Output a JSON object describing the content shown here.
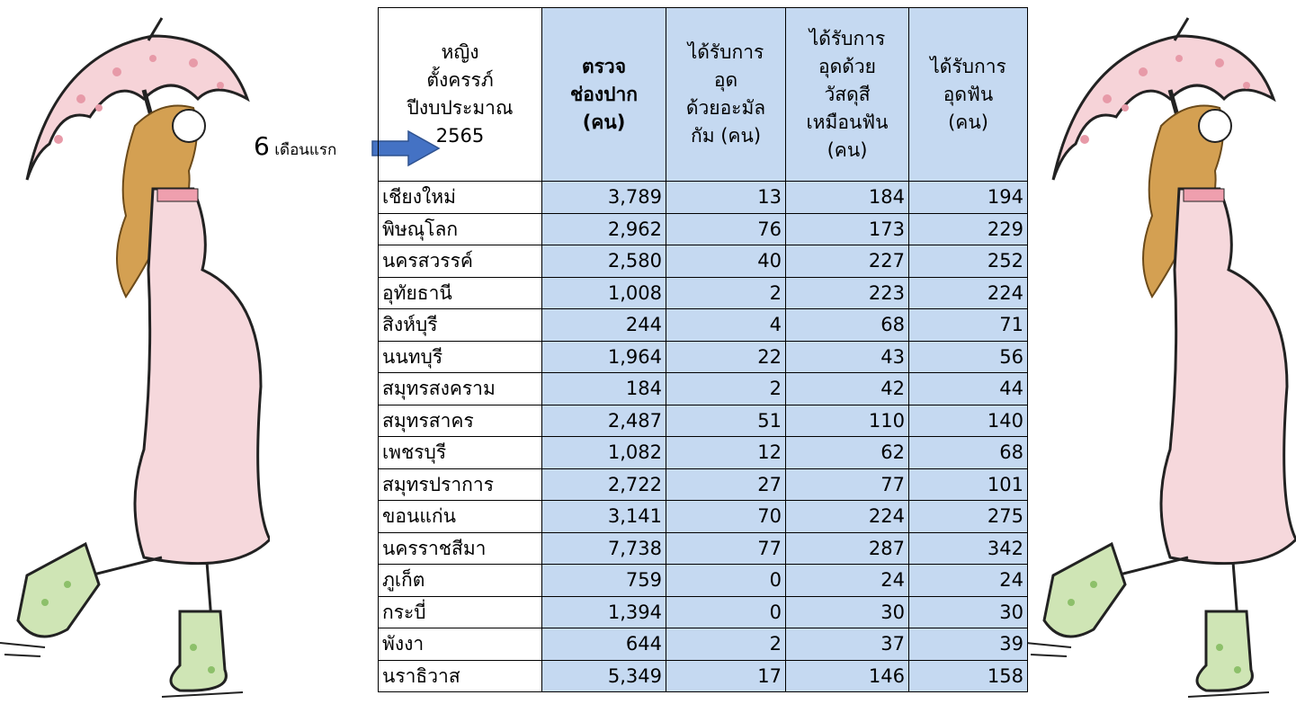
{
  "note": {
    "number": "6",
    "text": "เดือนแรก"
  },
  "table": {
    "headers": [
      [
        "หญิง",
        "ตั้งครรภ์",
        "ปีงบประมาณ",
        "2565"
      ],
      [
        "ตรวจ",
        "ช่องปาก",
        "(คน)"
      ],
      [
        "ได้รับการ",
        "อุด",
        "ด้วยอะมัล",
        "กัม (คน)"
      ],
      [
        "ได้รับการ",
        "อุดด้วย",
        "วัสดุสี",
        "เหมือนฟัน",
        "(คน)"
      ],
      [
        "ได้รับการ",
        "อุดฟัน",
        "(คน)"
      ]
    ],
    "rows": [
      [
        "เชียงใหม่",
        "3,789",
        "13",
        "184",
        "194"
      ],
      [
        "พิษณุโลก",
        "2,962",
        "76",
        "173",
        "229"
      ],
      [
        "นครสวรรค์",
        "2,580",
        "40",
        "227",
        "252"
      ],
      [
        "อุทัยธานี",
        "1,008",
        "2",
        "223",
        "224"
      ],
      [
        "สิงห์บุรี",
        "244",
        "4",
        "68",
        "71"
      ],
      [
        "นนทบุรี",
        "1,964",
        "22",
        "43",
        "56"
      ],
      [
        "สมุทรสงคราม",
        "184",
        "2",
        "42",
        "44"
      ],
      [
        "สมุทรสาคร",
        "2,487",
        "51",
        "110",
        "140"
      ],
      [
        "เพชรบุรี",
        "1,082",
        "12",
        "62",
        "68"
      ],
      [
        "สมุทรปราการ",
        "2,722",
        "27",
        "77",
        "101"
      ],
      [
        "ขอนแก่น",
        "3,141",
        "70",
        "224",
        "275"
      ],
      [
        "นครราชสีมา",
        "7,738",
        "77",
        "287",
        "342"
      ],
      [
        "ภูเก็ต",
        "759",
        "0",
        "24",
        "24"
      ],
      [
        "กระบี่",
        "1,394",
        "0",
        "30",
        "30"
      ],
      [
        "พังงา",
        "644",
        "2",
        "37",
        "39"
      ],
      [
        "นราธิวาส",
        "5,349",
        "17",
        "146",
        "158"
      ]
    ]
  }
}
